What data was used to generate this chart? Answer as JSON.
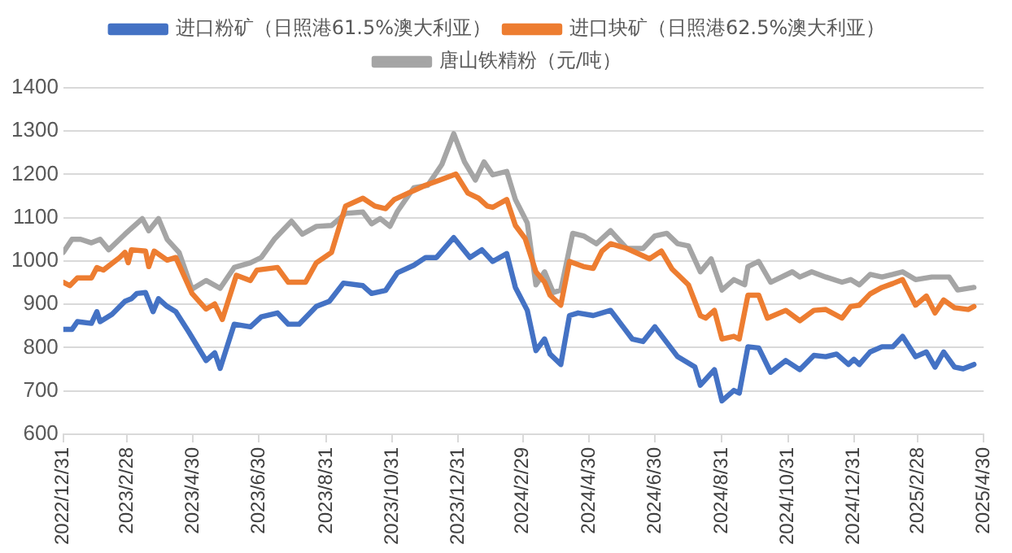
{
  "chart_data": {
    "type": "line",
    "xlim": [
      "2022-12-31",
      "2025-04-30"
    ],
    "xticks": [
      {
        "value": "2022-12-31",
        "label": "2022/12/31"
      },
      {
        "value": "2023-02-28",
        "label": "2023/2/28"
      },
      {
        "value": "2023-04-30",
        "label": "2023/4/30"
      },
      {
        "value": "2023-06-30",
        "label": "2023/6/30"
      },
      {
        "value": "2023-08-31",
        "label": "2023/8/31"
      },
      {
        "value": "2023-10-31",
        "label": "2023/10/31"
      },
      {
        "value": "2023-12-31",
        "label": "2023/12/31"
      },
      {
        "value": "2024-02-29",
        "label": "2024/2/29"
      },
      {
        "value": "2024-04-30",
        "label": "2024/4/30"
      },
      {
        "value": "2024-06-30",
        "label": "2024/6/30"
      },
      {
        "value": "2024-08-31",
        "label": "2024/8/31"
      },
      {
        "value": "2024-10-31",
        "label": "2024/10/31"
      },
      {
        "value": "2024-12-31",
        "label": "2024/12/31"
      },
      {
        "value": "2025-02-28",
        "label": "2025/2/28"
      },
      {
        "value": "2025-04-30",
        "label": "2025/4/30"
      }
    ],
    "ylim": [
      600,
      1400
    ],
    "yticks": [
      600,
      700,
      800,
      900,
      1000,
      1100,
      1200,
      1300,
      1400
    ],
    "grid": "y",
    "legend": "top",
    "marker": "none",
    "line_style": "solid",
    "series": [
      {
        "name": "进口粉矿（日照港61.5%澳大利亚）",
        "color": "#4472c4",
        "x": [
          "2022-12-31",
          "2023-01-08",
          "2023-01-13",
          "2023-01-26",
          "2023-01-31",
          "2023-02-03",
          "2023-02-14",
          "2023-02-26",
          "2023-03-04",
          "2023-03-09",
          "2023-03-17",
          "2023-03-24",
          "2023-03-29",
          "2023-04-06",
          "2023-04-14",
          "2023-04-26",
          "2023-05-12",
          "2023-05-20",
          "2023-05-25",
          "2023-06-07",
          "2023-06-22",
          "2023-07-02",
          "2023-07-17",
          "2023-07-27",
          "2023-08-06",
          "2023-08-22",
          "2023-09-03",
          "2023-09-16",
          "2023-10-04",
          "2023-10-12",
          "2023-10-25",
          "2023-11-05",
          "2023-11-20",
          "2023-12-01",
          "2023-12-11",
          "2023-12-27",
          "2024-01-11",
          "2024-01-22",
          "2024-02-01",
          "2024-02-14",
          "2024-02-22",
          "2024-03-04",
          "2024-03-12",
          "2024-03-20",
          "2024-03-25",
          "2024-04-04",
          "2024-04-12",
          "2024-04-20",
          "2024-05-04",
          "2024-05-20",
          "2024-06-09",
          "2024-06-19",
          "2024-06-30",
          "2024-07-21",
          "2024-08-06",
          "2024-08-11",
          "2024-08-24",
          "2024-08-31",
          "2024-09-11",
          "2024-09-16",
          "2024-09-24",
          "2024-10-04",
          "2024-10-15",
          "2024-10-29",
          "2024-11-11",
          "2024-11-24",
          "2024-12-05",
          "2024-12-15",
          "2024-12-26",
          "2024-12-31",
          "2025-01-05",
          "2025-01-15",
          "2025-01-26",
          "2025-02-05",
          "2025-02-14",
          "2025-02-26",
          "2025-03-08",
          "2025-03-16",
          "2025-03-24",
          "2025-04-03",
          "2025-04-11",
          "2025-04-21"
        ],
        "values": [
          842,
          842,
          860,
          856,
          883,
          860,
          877,
          907,
          913,
          925,
          927,
          883,
          913,
          895,
          883,
          836,
          770,
          788,
          752,
          854,
          848,
          871,
          880,
          854,
          854,
          895,
          907,
          949,
          943,
          925,
          932,
          973,
          990,
          1008,
          1008,
          1054,
          1008,
          1026,
          999,
          1017,
          939,
          886,
          793,
          820,
          785,
          761,
          874,
          880,
          874,
          886,
          820,
          814,
          848,
          779,
          755,
          713,
          749,
          677,
          701,
          695,
          802,
          799,
          743,
          770,
          749,
          782,
          779,
          785,
          761,
          773,
          761,
          790,
          802,
          802,
          826,
          779,
          790,
          755,
          790,
          755,
          751,
          761
        ]
      },
      {
        "name": "进口块矿（日照港62.5%澳大利亚）",
        "color": "#ed7d31",
        "x": [
          "2022-12-31",
          "2023-01-06",
          "2023-01-13",
          "2023-01-26",
          "2023-01-31",
          "2023-02-06",
          "2023-02-21",
          "2023-02-26",
          "2023-03-01",
          "2023-03-04",
          "2023-03-17",
          "2023-03-20",
          "2023-03-25",
          "2023-04-06",
          "2023-04-14",
          "2023-04-29",
          "2023-05-12",
          "2023-05-20",
          "2023-05-27",
          "2023-06-09",
          "2023-06-22",
          "2023-06-28",
          "2023-07-17",
          "2023-07-27",
          "2023-08-12",
          "2023-08-22",
          "2023-09-05",
          "2023-09-18",
          "2023-10-04",
          "2023-10-15",
          "2023-10-25",
          "2023-11-02",
          "2023-11-15",
          "2023-12-01",
          "2023-12-14",
          "2023-12-29",
          "2024-01-09",
          "2024-01-19",
          "2024-01-27",
          "2024-02-01",
          "2024-02-14",
          "2024-02-22",
          "2024-03-02",
          "2024-03-12",
          "2024-03-20",
          "2024-03-25",
          "2024-04-04",
          "2024-04-12",
          "2024-04-25",
          "2024-05-04",
          "2024-05-12",
          "2024-05-20",
          "2024-06-04",
          "2024-06-25",
          "2024-07-06",
          "2024-07-16",
          "2024-07-31",
          "2024-08-11",
          "2024-08-16",
          "2024-08-24",
          "2024-08-31",
          "2024-09-11",
          "2024-09-16",
          "2024-09-24",
          "2024-10-04",
          "2024-10-12",
          "2024-10-29",
          "2024-11-11",
          "2024-11-24",
          "2024-12-05",
          "2024-12-20",
          "2024-12-28",
          "2025-01-05",
          "2025-01-15",
          "2025-01-26",
          "2025-02-05",
          "2025-02-14",
          "2025-02-26",
          "2025-03-08",
          "2025-03-16",
          "2025-03-24",
          "2025-04-03",
          "2025-04-16",
          "2025-04-21"
        ],
        "values": [
          951,
          943,
          961,
          961,
          985,
          979,
          1008,
          1020,
          996,
          1026,
          1023,
          987,
          1023,
          1002,
          1008,
          925,
          889,
          901,
          865,
          967,
          955,
          979,
          985,
          951,
          951,
          996,
          1020,
          1127,
          1145,
          1127,
          1121,
          1142,
          1157,
          1175,
          1187,
          1201,
          1157,
          1145,
          1127,
          1124,
          1142,
          1082,
          1052,
          975,
          951,
          921,
          898,
          999,
          987,
          983,
          1023,
          1040,
          1029,
          1005,
          1023,
          981,
          945,
          874,
          868,
          886,
          820,
          826,
          820,
          921,
          921,
          868,
          886,
          862,
          886,
          888,
          868,
          895,
          898,
          924,
          939,
          948,
          957,
          898,
          919,
          880,
          910,
          892,
          888,
          895
        ]
      },
      {
        "name": "唐山铁精粉（元/吨）",
        "color": "#a5a5a5",
        "x": [
          "2022-12-31",
          "2023-01-08",
          "2023-01-16",
          "2023-01-26",
          "2023-02-03",
          "2023-02-11",
          "2023-02-26",
          "2023-03-14",
          "2023-03-20",
          "2023-03-29",
          "2023-04-06",
          "2023-04-17",
          "2023-04-29",
          "2023-05-12",
          "2023-05-25",
          "2023-06-07",
          "2023-06-22",
          "2023-07-02",
          "2023-07-14",
          "2023-07-30",
          "2023-08-09",
          "2023-08-22",
          "2023-09-05",
          "2023-09-18",
          "2023-10-04",
          "2023-10-12",
          "2023-10-20",
          "2023-10-29",
          "2023-11-05",
          "2023-11-20",
          "2023-12-03",
          "2023-12-16",
          "2023-12-27",
          "2024-01-06",
          "2024-01-16",
          "2024-01-24",
          "2024-02-01",
          "2024-02-14",
          "2024-02-22",
          "2024-03-04",
          "2024-03-12",
          "2024-03-20",
          "2024-03-28",
          "2024-04-04",
          "2024-04-15",
          "2024-04-25",
          "2024-05-07",
          "2024-05-20",
          "2024-06-04",
          "2024-06-19",
          "2024-06-30",
          "2024-07-11",
          "2024-07-21",
          "2024-07-31",
          "2024-08-11",
          "2024-08-21",
          "2024-08-31",
          "2024-09-11",
          "2024-09-21",
          "2024-09-24",
          "2024-10-04",
          "2024-10-15",
          "2024-11-04",
          "2024-11-11",
          "2024-11-22",
          "2024-12-05",
          "2024-12-20",
          "2024-12-28",
          "2025-01-05",
          "2025-01-15",
          "2025-01-26",
          "2025-02-05",
          "2025-02-14",
          "2025-02-26",
          "2025-03-13",
          "2025-03-29",
          "2025-04-06",
          "2025-04-21"
        ],
        "values": [
          1020,
          1050,
          1050,
          1042,
          1050,
          1026,
          1062,
          1098,
          1070,
          1098,
          1050,
          1020,
          935,
          955,
          937,
          985,
          996,
          1008,
          1050,
          1092,
          1062,
          1080,
          1082,
          1110,
          1113,
          1086,
          1098,
          1080,
          1115,
          1169,
          1175,
          1223,
          1294,
          1229,
          1187,
          1229,
          1199,
          1207,
          1142,
          1088,
          945,
          975,
          927,
          933,
          1064,
          1058,
          1040,
          1070,
          1029,
          1029,
          1058,
          1064,
          1040,
          1035,
          975,
          1005,
          933,
          957,
          945,
          987,
          999,
          951,
          975,
          963,
          975,
          963,
          951,
          957,
          945,
          969,
          963,
          969,
          975,
          957,
          963,
          963,
          933,
          939
        ]
      }
    ]
  }
}
